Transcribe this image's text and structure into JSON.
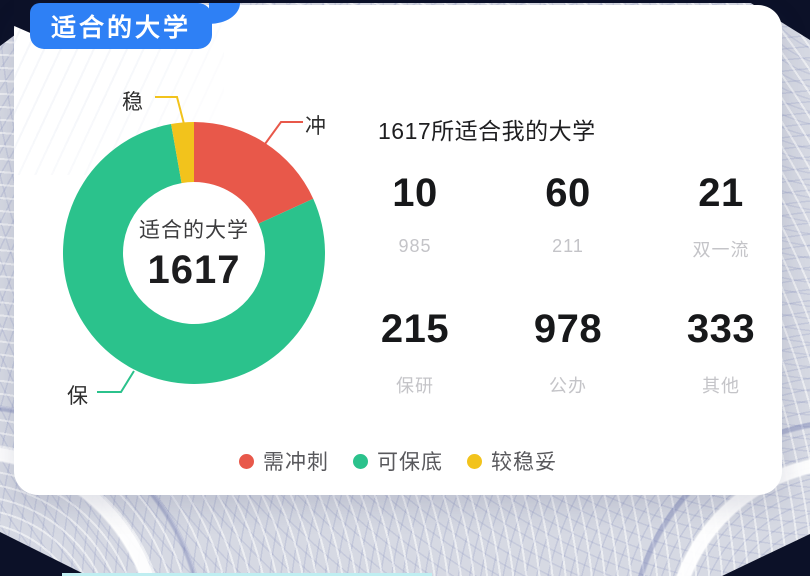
{
  "badge": {
    "label": "适合的大学"
  },
  "panel": {
    "title": "1617所适合我的大学"
  },
  "stats": [
    {
      "value": "10",
      "label": "985"
    },
    {
      "value": "60",
      "label": "211"
    },
    {
      "value": "21",
      "label": "双一流"
    },
    {
      "value": "215",
      "label": "保研"
    },
    {
      "value": "978",
      "label": "公办"
    },
    {
      "value": "333",
      "label": "其他"
    }
  ],
  "chart_data": {
    "type": "pie",
    "donut": true,
    "title": "适合的大学",
    "center_label": "适合的大学",
    "center_value": "1617",
    "total": 1617,
    "segments": [
      {
        "callout": "冲",
        "legend": "需冲刺",
        "percent": 18.2,
        "color": "#E8584A"
      },
      {
        "callout": "保",
        "legend": "可保底",
        "percent": 79.0,
        "color": "#2BC28C"
      },
      {
        "callout": "稳",
        "legend": "较稳妥",
        "percent": 2.8,
        "color": "#F2C31C"
      }
    ],
    "start_angle_deg_from_top": 0,
    "clockwise": true,
    "inner_radius_ratio": 0.54,
    "legend_position": "bottom"
  },
  "colors": {
    "badge_blue": "#2E80F5",
    "card_bg": "#FFFFFF",
    "page_bg": "#D6D9E3",
    "corner_navy": "#0C1128",
    "number_text": "#17181A",
    "sublabel_text": "#C4C4C8",
    "legend_text": "#58585C"
  }
}
